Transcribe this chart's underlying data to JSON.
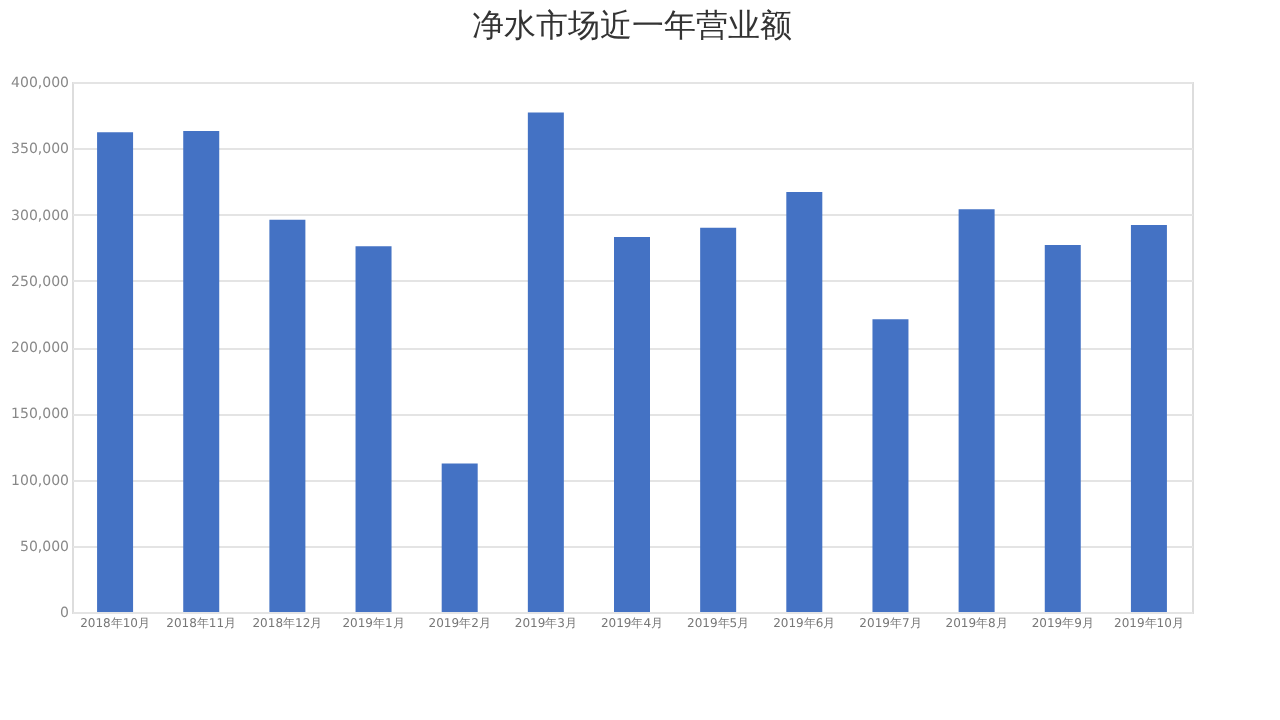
{
  "chart_data": {
    "type": "bar",
    "title": "净水市场近一年营业额",
    "categories": [
      "2018年10月",
      "2018年11月",
      "2018年12月",
      "2019年1月",
      "2019年2月",
      "2019年3月",
      "2019年4月",
      "2019年5月",
      "2019年6月",
      "2019年7月",
      "2019年8月",
      "2019年9月",
      "2019年10月"
    ],
    "values": [
      362000,
      363000,
      296000,
      276000,
      112000,
      377000,
      283000,
      290000,
      317000,
      221000,
      304000,
      277000,
      292000
    ],
    "color": "#4472c4",
    "ylim": [
      0,
      400000
    ],
    "yticks": [
      {
        "value": 0,
        "label": "0"
      },
      {
        "value": 50000,
        "label": "50,000"
      },
      {
        "value": 100000,
        "label": "100,000"
      },
      {
        "value": 150000,
        "label": "150,000"
      },
      {
        "value": 200000,
        "label": "200,000"
      },
      {
        "value": 250000,
        "label": "250,000"
      },
      {
        "value": 300000,
        "label": "300,000"
      },
      {
        "value": 350000,
        "label": "350,000"
      },
      {
        "value": 400000,
        "label": "400,000"
      }
    ],
    "grid": "y"
  }
}
